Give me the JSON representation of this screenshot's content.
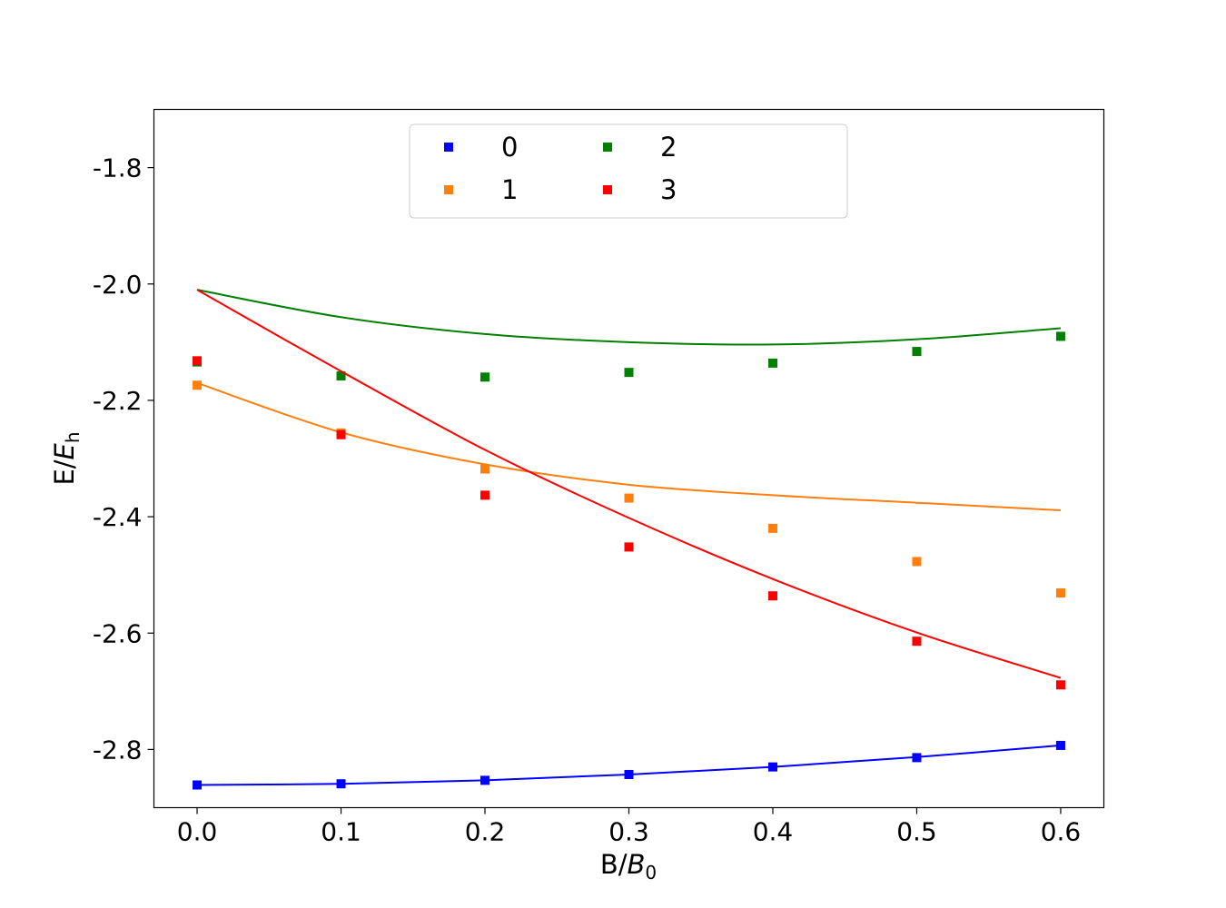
{
  "chart_data": {
    "type": "scatter",
    "title": "",
    "xlabel": {
      "main": "B/",
      "var": "B",
      "sub": "0"
    },
    "ylabel": {
      "main": "E/",
      "var": "E",
      "sub": "h"
    },
    "xlim": [
      -0.03,
      0.63
    ],
    "ylim": [
      -2.9,
      -1.7
    ],
    "xticks": [
      0.0,
      0.1,
      0.2,
      0.3,
      0.4,
      0.5,
      0.6
    ],
    "xtick_labels": [
      "0.0",
      "0.1",
      "0.2",
      "0.3",
      "0.4",
      "0.5",
      "0.6"
    ],
    "yticks": [
      -1.8,
      -2.0,
      -2.2,
      -2.4,
      -2.6,
      -2.8
    ],
    "ytick_labels": [
      "-1.8",
      "-2.0",
      "-2.2",
      "-2.4",
      "-2.6",
      "-2.8"
    ],
    "grid": false,
    "legend_position": "top-center",
    "x": [
      0.0,
      0.1,
      0.2,
      0.3,
      0.4,
      0.5,
      0.6
    ],
    "series": [
      {
        "name": "0",
        "color": "#0000ff",
        "points": [
          -2.861,
          -2.859,
          -2.853,
          -2.843,
          -2.83,
          -2.814,
          -2.793
        ],
        "curve": [
          -2.861,
          -2.859,
          -2.853,
          -2.843,
          -2.83,
          -2.813,
          -2.793
        ]
      },
      {
        "name": "1",
        "color": "#ff7f0e",
        "points": [
          -2.174,
          -2.256,
          -2.318,
          -2.368,
          -2.42,
          -2.477,
          -2.531
        ],
        "curve": [
          -2.17,
          -2.255,
          -2.31,
          -2.345,
          -2.363,
          -2.376,
          -2.389
        ]
      },
      {
        "name": "2",
        "color": "#008000",
        "points": [
          -2.134,
          -2.158,
          -2.16,
          -2.152,
          -2.136,
          -2.116,
          -2.09
        ],
        "curve": [
          -2.01,
          -2.057,
          -2.086,
          -2.1,
          -2.104,
          -2.095,
          -2.076
        ]
      },
      {
        "name": "3",
        "color": "#ff0000",
        "points": [
          -2.132,
          -2.259,
          -2.363,
          -2.452,
          -2.536,
          -2.614,
          -2.689
        ],
        "curve": [
          -2.01,
          -2.15,
          -2.285,
          -2.402,
          -2.507,
          -2.599,
          -2.677
        ]
      }
    ]
  }
}
